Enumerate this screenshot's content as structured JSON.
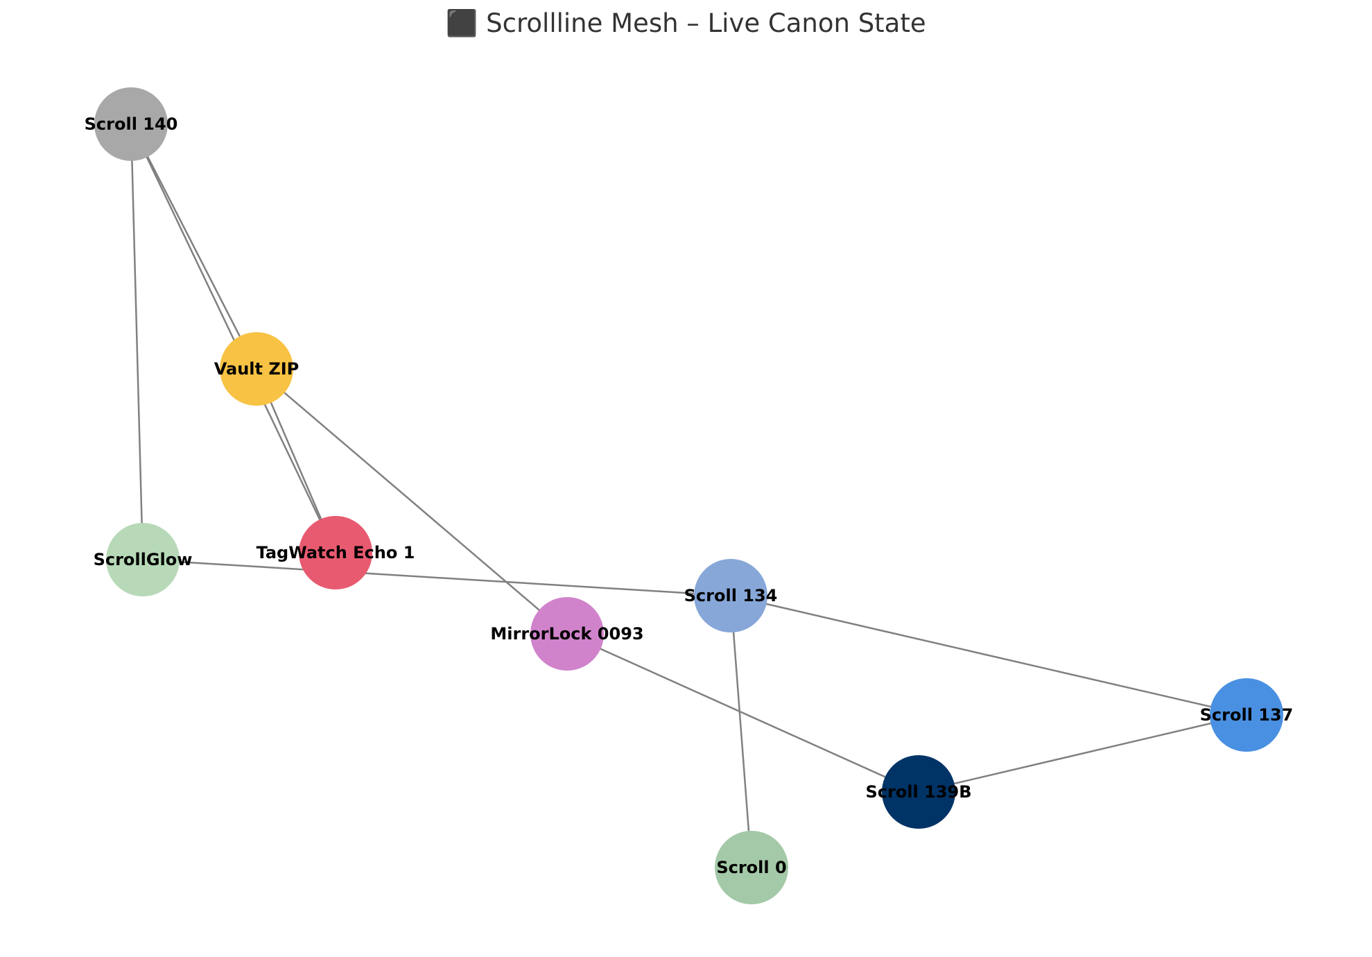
{
  "title": "⬛ Scrollline Mesh – Live Canon State",
  "edge_color": "#808080",
  "nodes": [
    {
      "id": "scroll140",
      "label": "Scroll 140",
      "color": "#a8a8a8"
    },
    {
      "id": "vaultzip",
      "label": "Vault ZIP",
      "color": "#f8c244"
    },
    {
      "id": "scrollglow",
      "label": "ScrollGlow",
      "color": "#b7d9b8"
    },
    {
      "id": "tagwatch",
      "label": "TagWatch Echo 1",
      "color": "#e85a70"
    },
    {
      "id": "scroll134",
      "label": "Scroll 134",
      "color": "#87a7d8"
    },
    {
      "id": "mirrorlock",
      "label": "MirrorLock 0093",
      "color": "#d083cb"
    },
    {
      "id": "scroll137",
      "label": "Scroll 137",
      "color": "#4a90e2"
    },
    {
      "id": "scroll139b",
      "label": "Scroll 139B",
      "color": "#003366"
    },
    {
      "id": "scroll0",
      "label": "Scroll 0",
      "color": "#a4c9a8"
    }
  ],
  "edges": [
    {
      "source": "scroll140",
      "target": "vaultzip"
    },
    {
      "source": "scroll140",
      "target": "tagwatch"
    },
    {
      "source": "scroll140",
      "target": "scrollglow"
    },
    {
      "source": "vaultzip",
      "target": "tagwatch"
    },
    {
      "source": "vaultzip",
      "target": "mirrorlock"
    },
    {
      "source": "scrollglow",
      "target": "scroll134"
    },
    {
      "source": "scroll134",
      "target": "scroll137"
    },
    {
      "source": "scroll134",
      "target": "scroll0"
    },
    {
      "source": "mirrorlock",
      "target": "scroll139b"
    },
    {
      "source": "scroll139b",
      "target": "scroll137"
    }
  ]
}
